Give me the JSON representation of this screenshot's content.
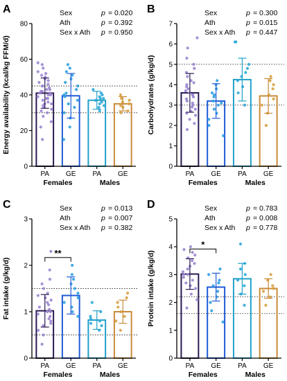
{
  "figure": {
    "colors": {
      "female_pa": "#2a1a52",
      "female_ge": "#1f5bd6",
      "male_pa": "#1fa0c8",
      "male_ge": "#c88a38",
      "female_pa_points": "#9b85cf",
      "female_ge_points": "#2f9fe0",
      "male_pa_points": "#2fa8d8",
      "male_ge_points": "#d7a040"
    }
  },
  "chart_data": [
    {
      "panel": "A",
      "type": "bar",
      "ylabel": "Energy availability (kcal/kg FFM/d)",
      "ylim": [
        0,
        80
      ],
      "yticks": [
        "0",
        "20",
        "40",
        "60",
        "80"
      ],
      "categories": [
        "PA",
        "GE",
        "PA",
        "GE"
      ],
      "groups": [
        "Females",
        "Males"
      ],
      "values": [
        41,
        39.5,
        37,
        35
      ],
      "sd": [
        8.5,
        12.5,
        5,
        4
      ],
      "ref_lines": [
        45,
        30
      ],
      "stats": [
        {
          "label": "Sex",
          "p": "p",
          "value": "= 0.020"
        },
        {
          "label": "Ath",
          "p": "p",
          "value": "= 0.392"
        },
        {
          "label": "Sex x Ath",
          "p": "p",
          "value": "= 0.950"
        }
      ],
      "points": [
        [
          15,
          22,
          25,
          28,
          30,
          31,
          32,
          33,
          34,
          35,
          35,
          36,
          37,
          38,
          38,
          39,
          40,
          40,
          41,
          41,
          42,
          42,
          43,
          43,
          44,
          45,
          45,
          46,
          47,
          48,
          49,
          50,
          51,
          52,
          53,
          55,
          57,
          58
        ],
        [
          15,
          22,
          27,
          30,
          33,
          35,
          37,
          39,
          40,
          41,
          43,
          45,
          47,
          49,
          51,
          53,
          55,
          57
        ],
        [
          31,
          33,
          34,
          35,
          36,
          37,
          38,
          38,
          39,
          40,
          41,
          43
        ],
        [
          30,
          31,
          33,
          34,
          35,
          36,
          37,
          38,
          40
        ]
      ]
    },
    {
      "panel": "B",
      "type": "bar",
      "ylabel": "Carbohydrates (g/kg/d)",
      "ylim": [
        0,
        7
      ],
      "yticks": [
        "0",
        "1",
        "2",
        "3",
        "4",
        "5",
        "6",
        "7"
      ],
      "categories": [
        "PA",
        "GE",
        "PA",
        "GE"
      ],
      "groups": [
        "Females",
        "Males"
      ],
      "values": [
        3.6,
        3.2,
        4.25,
        3.45
      ],
      "sd": [
        0.95,
        0.85,
        1.05,
        0.85
      ],
      "ref_lines": [
        5,
        3
      ],
      "stats": [
        {
          "label": "Sex",
          "p": "p",
          "value": "= 0.300"
        },
        {
          "label": "Ath",
          "p": "p",
          "value": "= 0.015"
        },
        {
          "label": "Sex x Ath",
          "p": "p",
          "value": "= 0.447"
        }
      ],
      "points": [
        [
          1.8,
          2.1,
          2.3,
          2.5,
          2.6,
          2.7,
          2.8,
          2.9,
          3.0,
          3.1,
          3.2,
          3.3,
          3.4,
          3.5,
          3.5,
          3.6,
          3.7,
          3.8,
          3.9,
          4.0,
          4.1,
          4.2,
          4.4,
          4.6,
          4.8,
          5.0,
          5.3,
          5.8,
          6.3
        ],
        [
          1.5,
          2.0,
          2.3,
          2.6,
          2.8,
          3.0,
          3.1,
          3.2,
          3.4,
          3.5,
          3.6,
          3.8,
          4.0,
          4.2
        ],
        [
          3.0,
          3.6,
          3.9,
          4.2,
          4.4,
          4.6,
          4.8,
          5.0,
          6.1,
          6.1
        ],
        [
          2.0,
          2.6,
          3.0,
          3.3,
          3.5,
          3.8,
          4.0,
          4.2,
          4.4
        ]
      ]
    },
    {
      "panel": "C",
      "type": "bar",
      "ylabel": "Fat intake (g/kg/d)",
      "ylim": [
        0,
        3
      ],
      "yticks": [
        "0",
        "1",
        "2",
        "3"
      ],
      "categories": [
        "PA",
        "GE",
        "PA",
        "GE"
      ],
      "groups": [
        "Females",
        "Males"
      ],
      "values": [
        1.02,
        1.35,
        0.82,
        1.0
      ],
      "sd": [
        0.35,
        0.4,
        0.2,
        0.25
      ],
      "ref_lines": [
        1.5,
        0.5
      ],
      "significance": {
        "label": "**",
        "between": [
          0,
          1
        ]
      },
      "stats": [
        {
          "label": "Sex",
          "p": "p",
          "value": "= 0.013"
        },
        {
          "label": "Ath",
          "p": "p",
          "value": "= 0.007"
        },
        {
          "label": "Sex x Ath",
          "p": "p",
          "value": "= 0.382"
        }
      ],
      "points": [
        [
          0.3,
          0.5,
          0.6,
          0.7,
          0.75,
          0.8,
          0.85,
          0.9,
          0.95,
          1.0,
          1.0,
          1.05,
          1.1,
          1.15,
          1.2,
          1.25,
          1.3,
          1.35,
          1.4,
          1.5,
          1.6,
          1.7,
          1.9,
          2.3
        ],
        [
          0.9,
          1.0,
          1.1,
          1.2,
          1.3,
          1.4,
          1.5,
          1.6,
          1.7,
          1.8,
          2.0
        ],
        [
          0.6,
          0.7,
          0.75,
          0.8,
          0.85,
          0.9,
          1.0,
          1.2
        ],
        [
          0.6,
          0.8,
          0.9,
          1.0,
          1.1,
          1.2,
          1.3,
          1.4
        ]
      ]
    },
    {
      "panel": "D",
      "type": "bar",
      "ylabel": "Protein intake (g/kg/d)",
      "ylim": [
        0,
        5
      ],
      "yticks": [
        "0",
        "1",
        "2",
        "3",
        "4",
        "5"
      ],
      "categories": [
        "PA",
        "GE",
        "PA",
        "GE"
      ],
      "groups": [
        "Females",
        "Males"
      ],
      "values": [
        3.02,
        2.55,
        2.85,
        2.5
      ],
      "sd": [
        0.55,
        0.5,
        0.55,
        0.35
      ],
      "ref_lines": [
        2.2,
        1.6
      ],
      "significance": {
        "label": "*",
        "between": [
          0,
          1
        ]
      },
      "stats": [
        {
          "label": "Sex",
          "p": "p",
          "value": "= 0.783"
        },
        {
          "label": "Ath",
          "p": "p",
          "value": "= 0.008"
        },
        {
          "label": "Sex x Ath",
          "p": "p",
          "value": "= 0.778"
        }
      ],
      "points": [
        [
          1.8,
          2.1,
          2.3,
          2.5,
          2.6,
          2.7,
          2.8,
          2.9,
          3.0,
          3.0,
          3.1,
          3.2,
          3.3,
          3.4,
          3.5,
          3.6,
          3.7,
          3.8,
          3.9,
          4.0
        ],
        [
          1.3,
          1.7,
          2.0,
          2.2,
          2.4,
          2.6,
          2.7,
          2.8,
          3.0,
          3.2
        ],
        [
          1.9,
          2.3,
          2.6,
          2.8,
          3.0,
          3.2,
          3.4,
          4.1
        ],
        [
          1.9,
          2.2,
          2.4,
          2.5,
          2.6,
          2.8,
          3.0
        ]
      ]
    }
  ]
}
